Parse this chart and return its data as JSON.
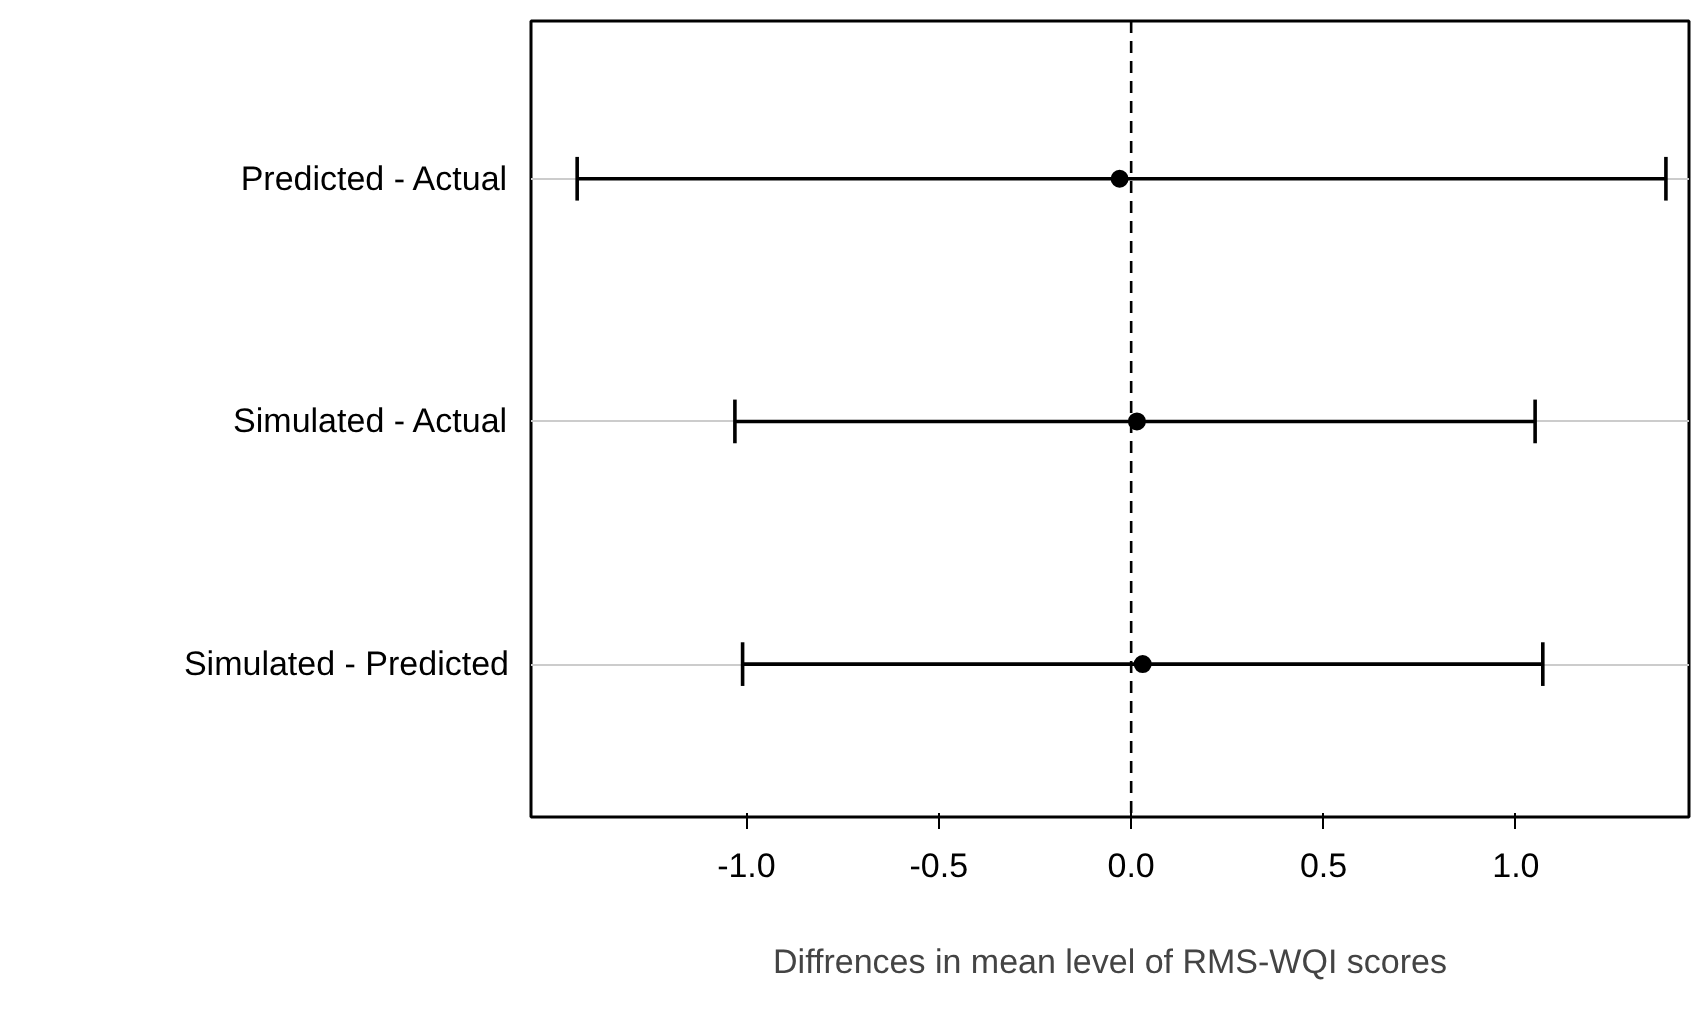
{
  "chart_data": {
    "type": "scatter",
    "orientation": "horizontal",
    "xlabel": "Diffrences in mean level of RMS-WQI scores",
    "categories": [
      "Predicted - Actual",
      "Simulated - Actual",
      "Simulated - Predicted"
    ],
    "values": [
      -0.03,
      0.015,
      0.03
    ],
    "errors": [
      [
        -1.44,
        1.39
      ],
      [
        -1.03,
        1.05
      ],
      [
        -1.01,
        1.07
      ]
    ],
    "color": "#000000",
    "marker": "circle",
    "xlim": [
      -1.56,
      1.45
    ],
    "xticks": [
      {
        "value": -1.0,
        "label": "-1.0"
      },
      {
        "value": -0.5,
        "label": "-0.5"
      },
      {
        "value": 0.0,
        "label": "0.0"
      },
      {
        "value": 0.5,
        "label": "0.5"
      },
      {
        "value": 1.0,
        "label": "1.0"
      }
    ],
    "ref_lines": [
      {
        "axis": "x",
        "value": 0,
        "line_style": "dashed",
        "color": "#000000"
      }
    ],
    "grid": "y"
  }
}
